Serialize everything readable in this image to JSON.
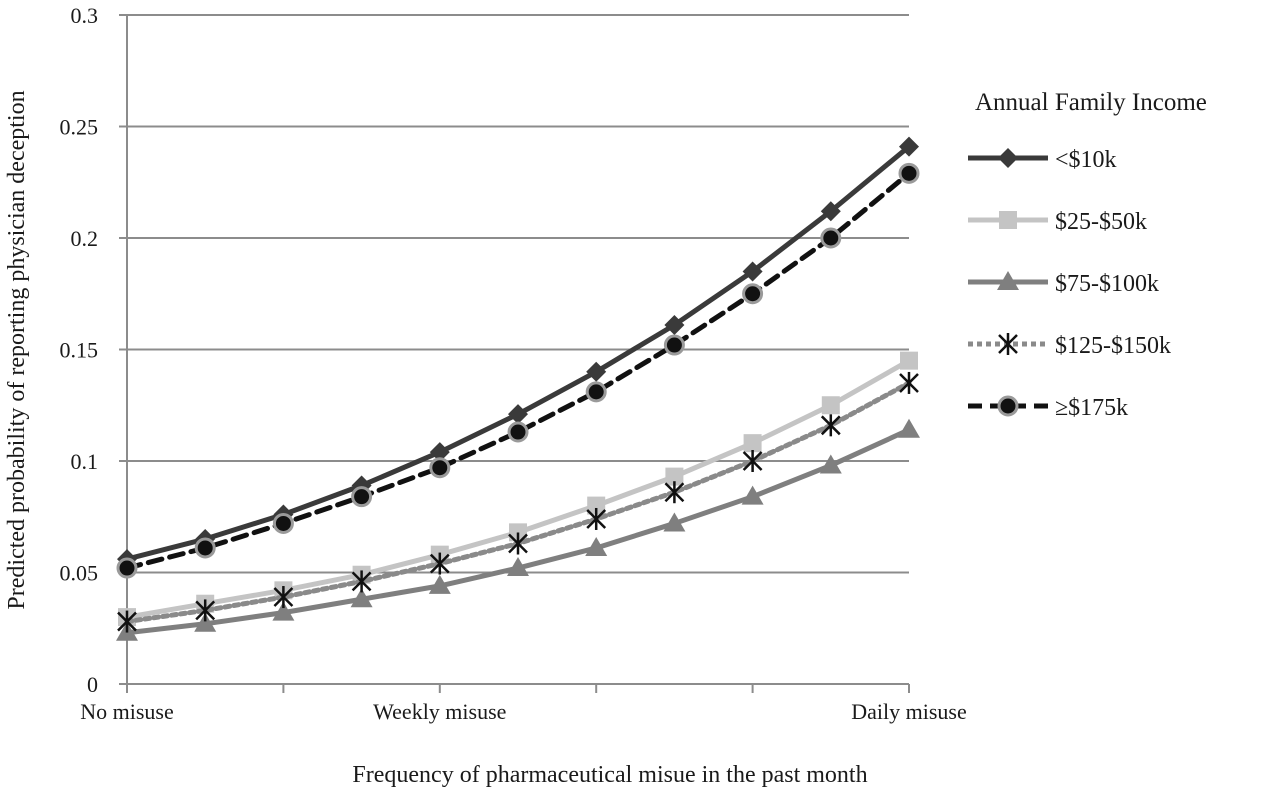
{
  "chart_data": {
    "type": "line",
    "xlabel": "Frequency of pharmaceutical misue in the past month",
    "ylabel": "Predicted probability of reporting physician deception",
    "ylim": [
      0,
      0.3
    ],
    "yticks": [
      "0",
      "0.05",
      "0.1",
      "0.15",
      "0.2",
      "0.25",
      "0.3"
    ],
    "xticks": [
      {
        "index": 0,
        "label": "No misuse"
      },
      {
        "index": 4,
        "label": "Weekly misuse"
      },
      {
        "index": 10,
        "label": "Daily misuse"
      }
    ],
    "grid": "horizontal",
    "legend": {
      "title": "Annual Family Income",
      "placement": "right"
    },
    "x": [
      0,
      1,
      2,
      3,
      4,
      5,
      6,
      7,
      8,
      9,
      10
    ],
    "series": [
      {
        "name": "<$10k",
        "color": "#3a3a3a",
        "marker": "diamond",
        "dash": "solid",
        "values": [
          0.056,
          0.065,
          0.076,
          0.089,
          0.104,
          0.121,
          0.14,
          0.161,
          0.185,
          0.212,
          0.241
        ]
      },
      {
        "name": "$25-$50k",
        "color": "#c4c4c4",
        "marker": "square",
        "dash": "solid",
        "values": [
          0.03,
          0.036,
          0.042,
          0.049,
          0.058,
          0.068,
          0.08,
          0.093,
          0.108,
          0.125,
          0.145
        ]
      },
      {
        "name": "$75-$100k",
        "color": "#7f7f7f",
        "marker": "triangle",
        "dash": "solid",
        "values": [
          0.023,
          0.027,
          0.032,
          0.038,
          0.044,
          0.052,
          0.061,
          0.072,
          0.084,
          0.098,
          0.114
        ]
      },
      {
        "name": "$125-$150k",
        "color": "#8a8a8a",
        "marker": "star",
        "dash": "dotted",
        "values": [
          0.028,
          0.033,
          0.039,
          0.046,
          0.054,
          0.063,
          0.074,
          0.086,
          0.1,
          0.116,
          0.135
        ]
      },
      {
        "name": "≥$175k",
        "color": "#111111",
        "marker": "circle",
        "dash": "dashed",
        "values": [
          0.052,
          0.061,
          0.072,
          0.084,
          0.097,
          0.113,
          0.131,
          0.152,
          0.175,
          0.2,
          0.229
        ]
      }
    ]
  }
}
